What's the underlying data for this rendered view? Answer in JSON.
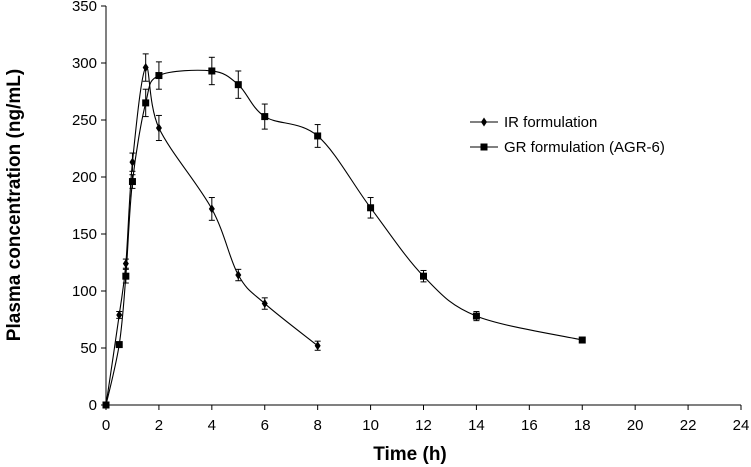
{
  "chart_data": {
    "type": "line",
    "title": "",
    "xlabel": "Time (h)",
    "ylabel": "Plasma concentration (ng/mL)",
    "xlim": [
      0,
      24
    ],
    "ylim": [
      0,
      350
    ],
    "xticks": [
      0,
      2,
      4,
      6,
      8,
      10,
      12,
      14,
      16,
      18,
      20,
      22,
      24
    ],
    "yticks": [
      0,
      50,
      100,
      150,
      200,
      250,
      300,
      350
    ],
    "grid": false,
    "legend_position": "right",
    "series": [
      {
        "name": "IR formulation",
        "marker": "diamond",
        "color": "#000000",
        "x": [
          0,
          0.5,
          0.75,
          1,
          1.5,
          2,
          4,
          5,
          6,
          8
        ],
        "y": [
          0,
          79,
          124,
          213,
          296,
          243,
          172,
          114,
          89,
          52
        ],
        "error": [
          0,
          3,
          4,
          8,
          12,
          11,
          10,
          5,
          5,
          4
        ]
      },
      {
        "name": "GR formulation (AGR-6)",
        "marker": "square",
        "color": "#000000",
        "x": [
          0,
          0.5,
          0.75,
          1,
          1.5,
          2,
          4,
          5,
          6,
          8,
          10,
          12,
          14,
          18
        ],
        "y": [
          0,
          53,
          113,
          196,
          265,
          289,
          293,
          281,
          253,
          236,
          173,
          113,
          78,
          57
        ],
        "error": [
          0,
          0,
          6,
          6,
          12,
          12,
          12,
          12,
          11,
          10,
          9,
          5,
          4,
          0
        ]
      }
    ]
  }
}
